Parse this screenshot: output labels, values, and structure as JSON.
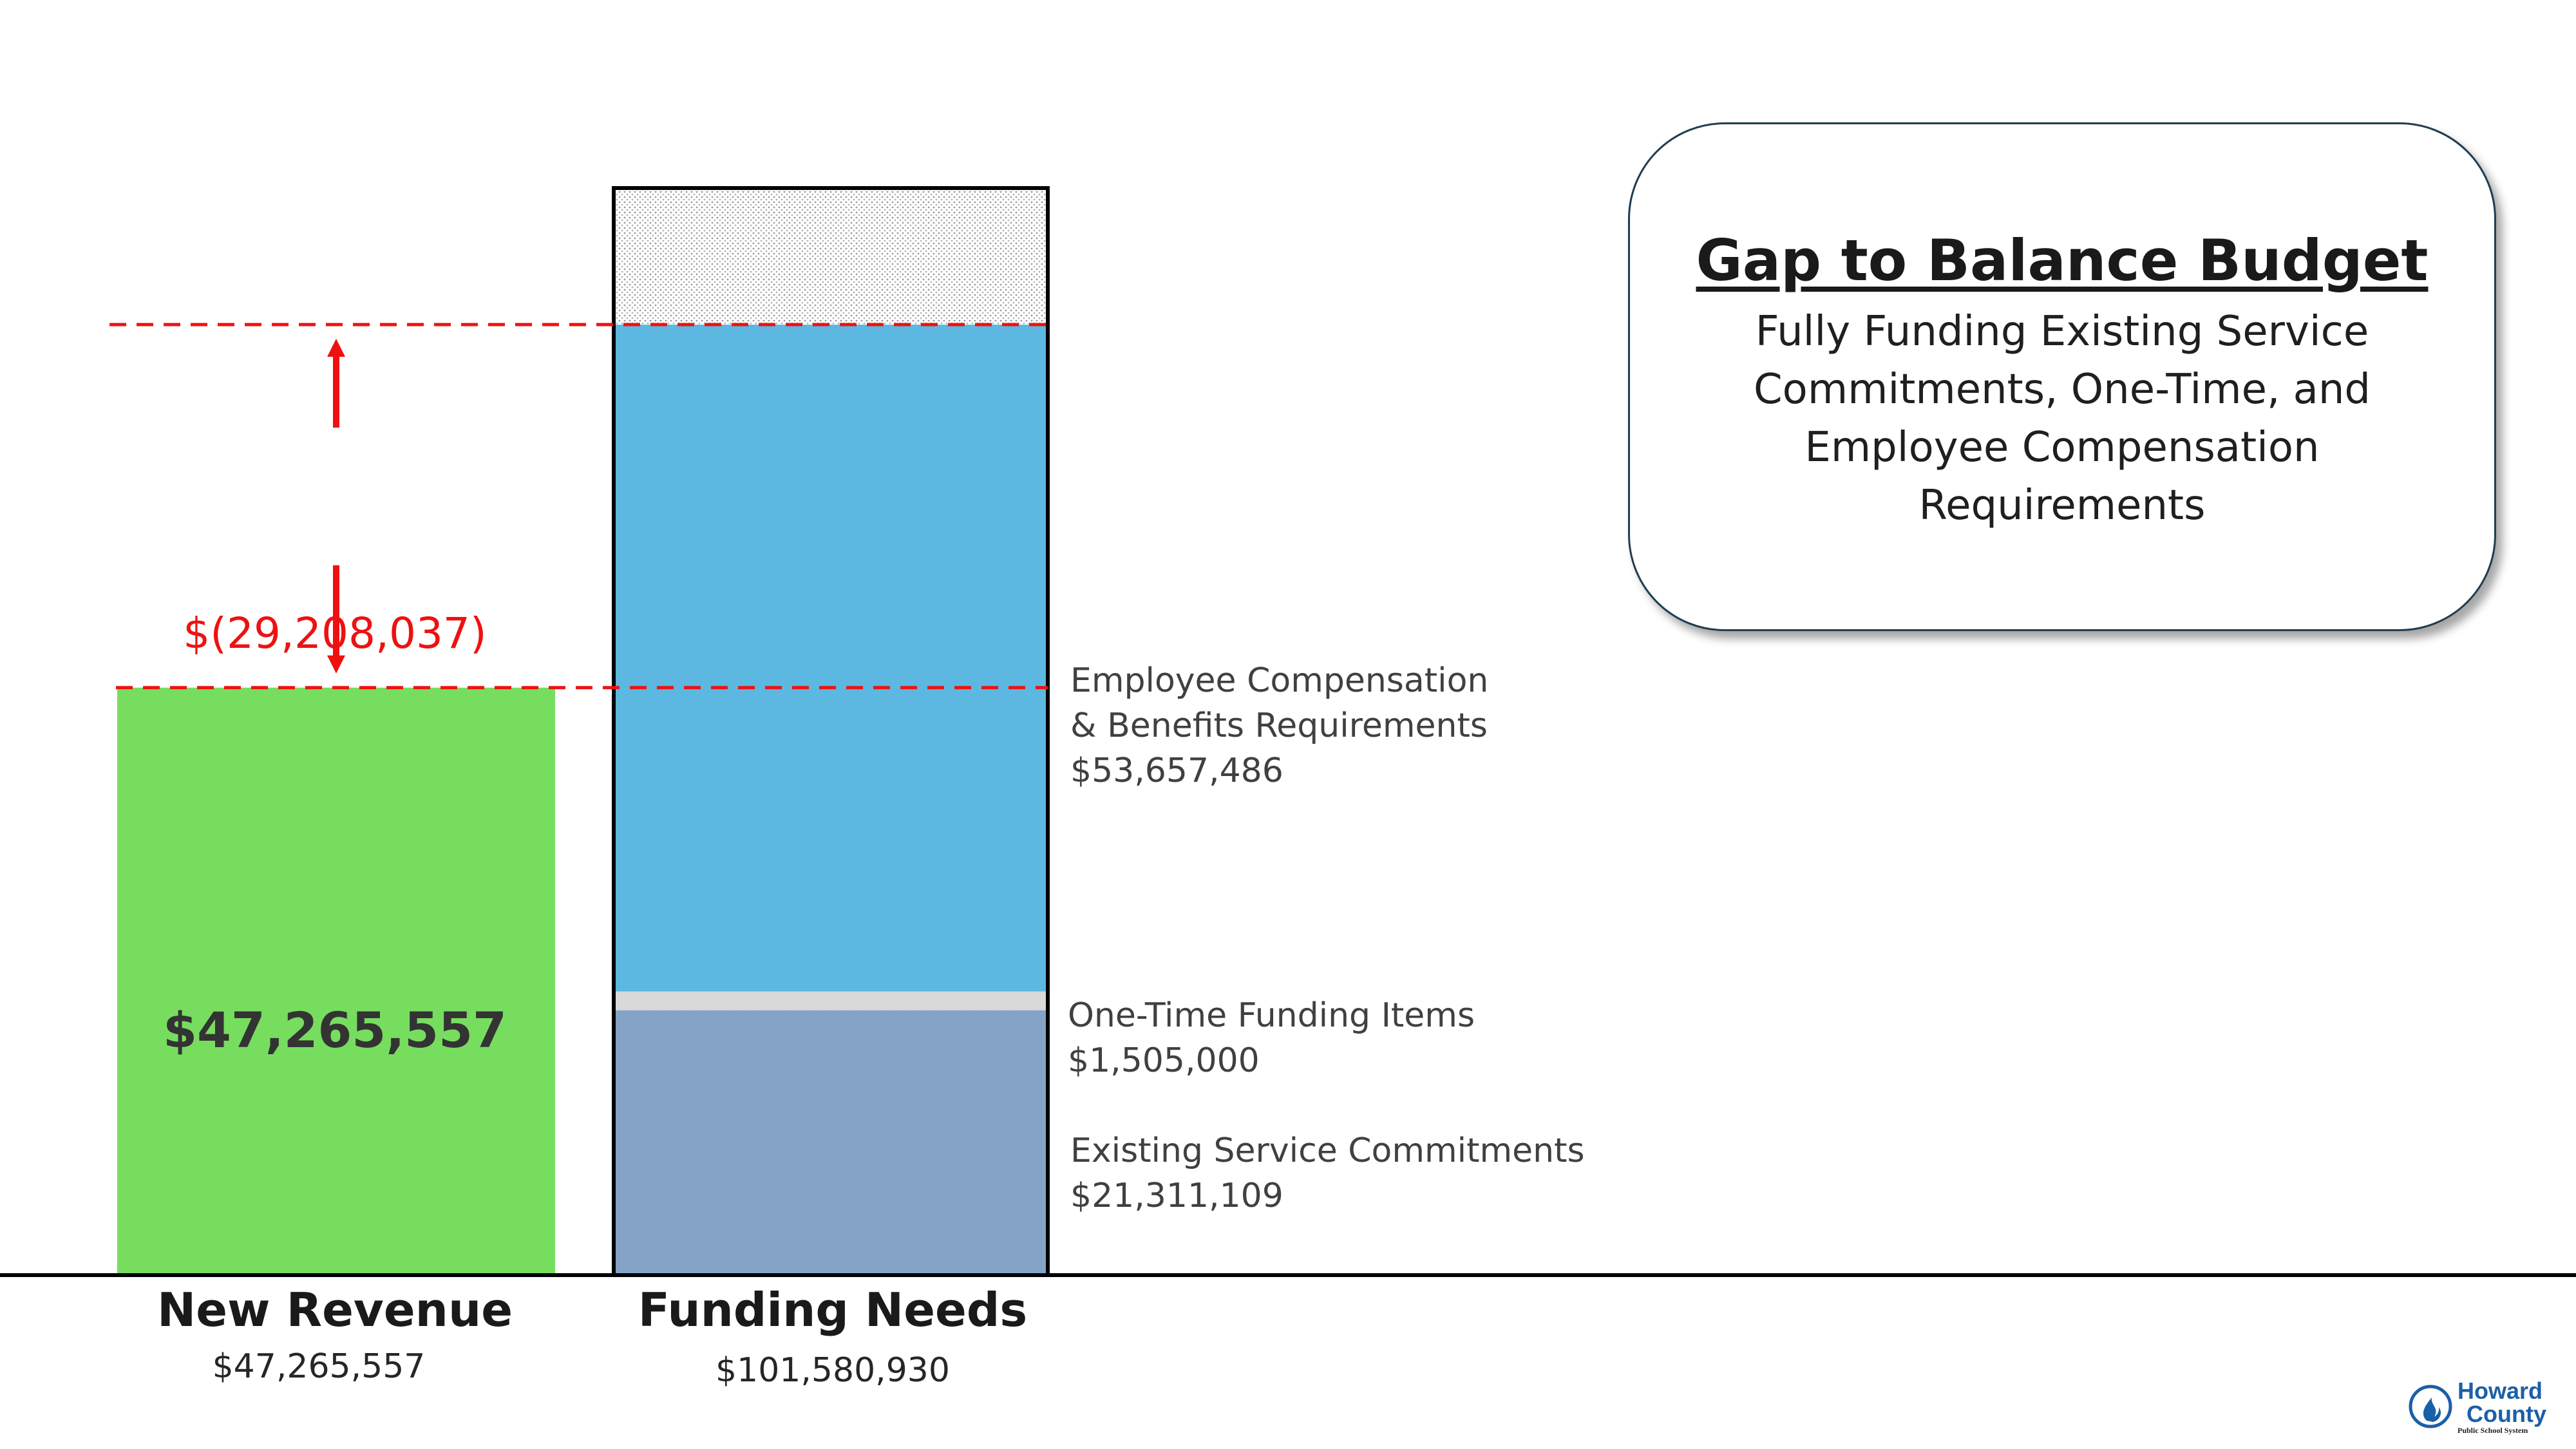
{
  "chart_data": {
    "type": "bar",
    "subtype": "stacked-bar-comparison",
    "categories": [
      "New Revenue",
      "Funding Needs"
    ],
    "category_totals": [
      "$47,265,557",
      "$101,580,930"
    ],
    "revenue": {
      "value": 47265557,
      "label": "$47,265,557",
      "color": "#77dd5f"
    },
    "segments": [
      {
        "name": "Existing Service Commitments",
        "value": 21311109,
        "value_label": "$21,311,109",
        "color": "#84a3c6"
      },
      {
        "name": "One-Time Funding Items",
        "value": 1505000,
        "value_label": "$1,505,000",
        "color": "#d9d9d9"
      },
      {
        "name": "Employee Compensation & Benefits Requirements",
        "name_lines": [
          "Employee Compensation",
          "& Benefits Requirements"
        ],
        "value": 53657486,
        "value_label": "$53,657,486",
        "color": "#5cb8e0"
      }
    ],
    "remainder_pattern": "dotted-gray",
    "gap": {
      "value": -29208037,
      "label": "$(29,208,037)",
      "color": "#ee1111"
    },
    "grid": false
  },
  "callout": {
    "title": "Gap to Balance Budget",
    "subtitle": "Fully Funding Existing Service Commitments, One-Time, and Employee Compensation Requirements"
  },
  "logo": {
    "line1": "Howard",
    "line2": "County",
    "tagline": "Public School System",
    "color": "#1b5fa8"
  }
}
